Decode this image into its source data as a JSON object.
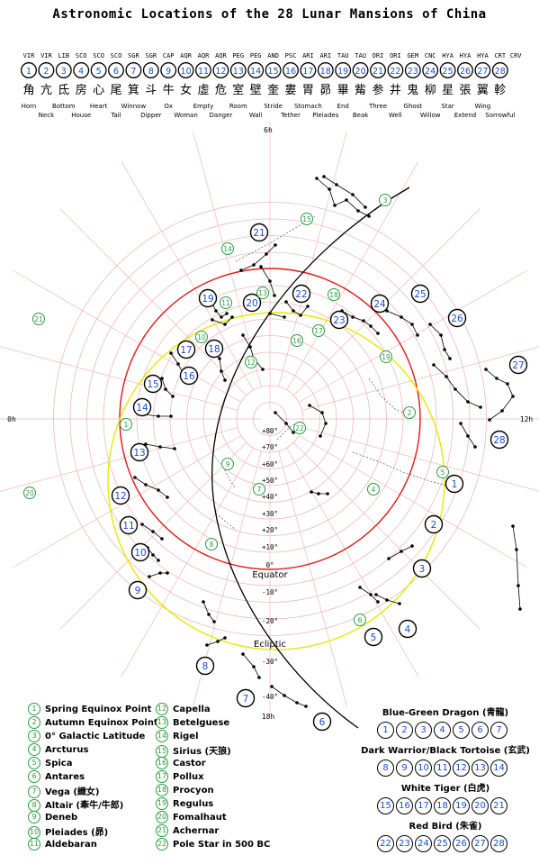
{
  "title": "Astronomic Locations of the 28 Lunar Mansions of China",
  "mansions": [
    {
      "n": "1",
      "abbr": "VIR",
      "glyph": "角",
      "label": "Horn"
    },
    {
      "n": "2",
      "abbr": "VIR",
      "glyph": "亢",
      "label": "Neck"
    },
    {
      "n": "3",
      "abbr": "LIB",
      "glyph": "氐",
      "label": "Bottom"
    },
    {
      "n": "4",
      "abbr": "SCO",
      "glyph": "房",
      "label": "House"
    },
    {
      "n": "5",
      "abbr": "SCO",
      "glyph": "心",
      "label": "Heart"
    },
    {
      "n": "6",
      "abbr": "SCO",
      "glyph": "尾",
      "label": "Tail"
    },
    {
      "n": "7",
      "abbr": "SGR",
      "glyph": "箕",
      "label": "Winnow"
    },
    {
      "n": "8",
      "abbr": "SGR",
      "glyph": "斗",
      "label": "Dipper"
    },
    {
      "n": "9",
      "abbr": "CAP",
      "glyph": "牛",
      "label": "Ox"
    },
    {
      "n": "10",
      "abbr": "AQR",
      "glyph": "女",
      "label": "Woman"
    },
    {
      "n": "11",
      "abbr": "AQR",
      "glyph": "虛",
      "label": "Empty"
    },
    {
      "n": "12",
      "abbr": "AQR",
      "glyph": "危",
      "label": "Danger"
    },
    {
      "n": "13",
      "abbr": "PEG",
      "glyph": "室",
      "label": "Room"
    },
    {
      "n": "14",
      "abbr": "PEG",
      "glyph": "壁",
      "label": "Wall"
    },
    {
      "n": "15",
      "abbr": "AND",
      "glyph": "奎",
      "label": "Stride"
    },
    {
      "n": "16",
      "abbr": "PSC",
      "glyph": "婁",
      "label": "Tether"
    },
    {
      "n": "17",
      "abbr": "ARI",
      "glyph": "胃",
      "label": "Stomach"
    },
    {
      "n": "18",
      "abbr": "ARI",
      "glyph": "昴",
      "label": "Pleiades"
    },
    {
      "n": "19",
      "abbr": "TAU",
      "glyph": "畢",
      "label": "End"
    },
    {
      "n": "20",
      "abbr": "TAU",
      "glyph": "觜",
      "label": "Beak"
    },
    {
      "n": "21",
      "abbr": "ORI",
      "glyph": "参",
      "label": "Three"
    },
    {
      "n": "22",
      "abbr": "ORI",
      "glyph": "井",
      "label": "Well"
    },
    {
      "n": "23",
      "abbr": "GEM",
      "glyph": "鬼",
      "label": "Ghost"
    },
    {
      "n": "24",
      "abbr": "CNC",
      "glyph": "柳",
      "label": "Willow"
    },
    {
      "n": "25",
      "abbr": "HYA",
      "glyph": "星",
      "label": "Star"
    },
    {
      "n": "26",
      "abbr": "HYA",
      "glyph": "張",
      "label": "Extend"
    },
    {
      "n": "27",
      "abbr": "HYA",
      "glyph": "翼",
      "label": "Wing"
    },
    {
      "n": "28",
      "abbr": "CRT",
      "glyph": "軫",
      "label": "Sorrowful"
    }
  ],
  "extra_abbr": "CRV",
  "hour_labels": {
    "top": "6h",
    "left": "0h",
    "right": "12h",
    "bottom": "18h"
  },
  "dec_labels": [
    "+80°",
    "+70°",
    "+60°",
    "+50°",
    "+40°",
    "+30°",
    "+20°",
    "+10°",
    "0°",
    "-10°",
    "-20°",
    "-30°",
    "-40°"
  ],
  "curve_labels": {
    "equator": "Equator",
    "ecliptic": "Ecliptic"
  },
  "legend": [
    {
      "n": "1",
      "text": "Spring Equinox Point"
    },
    {
      "n": "2",
      "text": "Autumn Equinox Point"
    },
    {
      "n": "3",
      "text": "0° Galactic Latitude"
    },
    {
      "n": "4",
      "text": "Arcturus"
    },
    {
      "n": "5",
      "text": "Spica"
    },
    {
      "n": "6",
      "text": "Antares"
    },
    {
      "n": "7",
      "text": "Vega (織女)"
    },
    {
      "n": "8",
      "text": "Altair (牽牛/牛郎)"
    },
    {
      "n": "9",
      "text": "Deneb"
    },
    {
      "n": "10",
      "text": "Pleiades (昴)"
    },
    {
      "n": "11",
      "text": "Aldebaran"
    },
    {
      "n": "12",
      "text": "Capella"
    },
    {
      "n": "13",
      "text": "Betelguese"
    },
    {
      "n": "14",
      "text": "Rigel"
    },
    {
      "n": "15",
      "text": "Sirius (天狼)"
    },
    {
      "n": "16",
      "text": "Castor"
    },
    {
      "n": "17",
      "text": "Pollux"
    },
    {
      "n": "18",
      "text": "Procyon"
    },
    {
      "n": "19",
      "text": "Regulus"
    },
    {
      "n": "20",
      "text": "Fomalhaut"
    },
    {
      "n": "21",
      "text": "Achernar"
    },
    {
      "n": "22",
      "text": "Pole Star in 500 BC"
    }
  ],
  "groups": [
    {
      "title": "Blue-Green Dragon (青龍)",
      "nums": [
        "1",
        "2",
        "3",
        "4",
        "5",
        "6",
        "7"
      ]
    },
    {
      "title": "Dark Warrior/Black Tortoise (玄武)",
      "nums": [
        "8",
        "9",
        "10",
        "11",
        "12",
        "13",
        "14"
      ]
    },
    {
      "title": "White Tiger (白虎)",
      "nums": [
        "15",
        "16",
        "17",
        "18",
        "19",
        "20",
        "21"
      ]
    },
    {
      "title": "Red Bird (朱雀)",
      "nums": [
        "22",
        "23",
        "24",
        "25",
        "26",
        "27",
        "28"
      ]
    }
  ],
  "colors": {
    "grid": "#f2b8b8",
    "equator": "#e02020",
    "ecliptic": "#e8e800",
    "galactic": "#000000",
    "mansion_number": "#1a4fd0",
    "marker": "#2a9d3f"
  }
}
